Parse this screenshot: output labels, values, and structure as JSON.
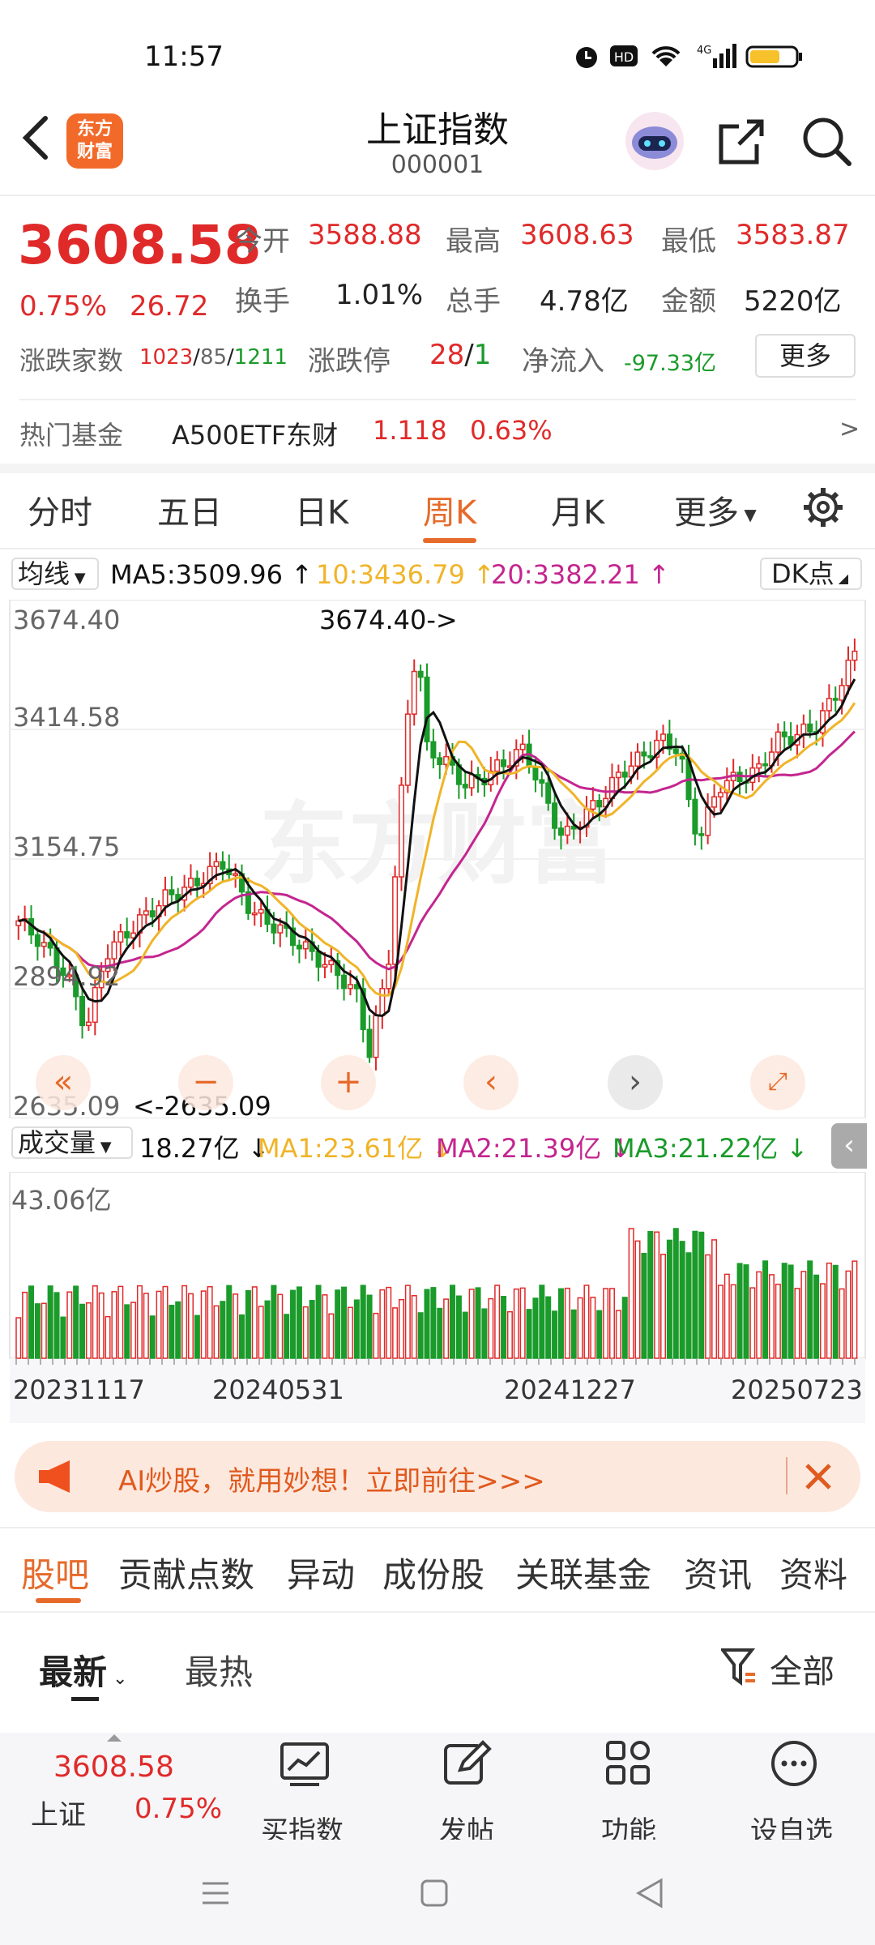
{
  "status": {
    "time": "11:57"
  },
  "header": {
    "title": "上证指数",
    "code": "000001",
    "logo_line1": "东方",
    "logo_line2": "财富"
  },
  "quote": {
    "price": "3608.58",
    "change_pct": "0.75%",
    "change": "26.72",
    "open_label": "今开",
    "open": "3588.88",
    "high_label": "最高",
    "high": "3608.63",
    "low_label": "最低",
    "low": "3583.87",
    "turnover_label": "换手",
    "turnover": "1.01%",
    "volume_label": "总手",
    "volume": "4.78亿",
    "amount_label": "金额",
    "amount": "5220亿",
    "updown_label": "涨跌家数",
    "up": "1023",
    "flat": "85",
    "down": "1211",
    "limit_label": "涨跌停",
    "limit_up": "28",
    "limit_down": "1",
    "netflow_label": "净流入",
    "netflow": "-97.33亿",
    "more_button": "更多"
  },
  "hot_fund": {
    "label": "热门基金",
    "name": "A500ETF东财",
    "price": "1.118",
    "pct": "0.63%",
    "arrow": ">"
  },
  "tabs": [
    "分时",
    "五日",
    "日K",
    "周K",
    "月K",
    "更多"
  ],
  "active_tab": "周K",
  "ma": {
    "select": "均线",
    "ma5": "MA5:3509.96",
    "ma10": "10:3436.79",
    "ma20": "20:3382.21",
    "dk": "DK点"
  },
  "kline": {
    "y_labels": [
      "3674.40",
      "3414.58",
      "3154.75",
      "2894.92",
      "2635.09"
    ],
    "max_note": "3674.40->",
    "min_note": "<-2635.09",
    "watermark": "东方财富"
  },
  "volume": {
    "select": "成交量",
    "value": "18.27亿",
    "ma1": "MA1:23.61亿",
    "ma2": "MA2:21.39亿",
    "ma3": "MA3:21.22亿",
    "y_label": "43.06亿",
    "dates": [
      "20231117",
      "20240531",
      "20241227",
      "20250723"
    ]
  },
  "banner": {
    "text": "AI炒股，就用妙想！立即前往>>>"
  },
  "subtabs": [
    "股吧",
    "贡献点数",
    "异动",
    "成份股",
    "关联基金",
    "资讯",
    "资料"
  ],
  "sort": {
    "newest": "最新",
    "hottest": "最热",
    "filter": "全部"
  },
  "bottom": {
    "price": "3608.58",
    "name": "上证",
    "pct": "0.75%",
    "buy": "买指数",
    "post": "发帖",
    "func": "功能",
    "watch": "设自选"
  },
  "colors": {
    "up": "#e02a2a",
    "down": "#1a9b2a",
    "accent": "#e66a2a",
    "ma5": "#111111",
    "ma10": "#f0b429",
    "ma20": "#c4258f"
  }
}
